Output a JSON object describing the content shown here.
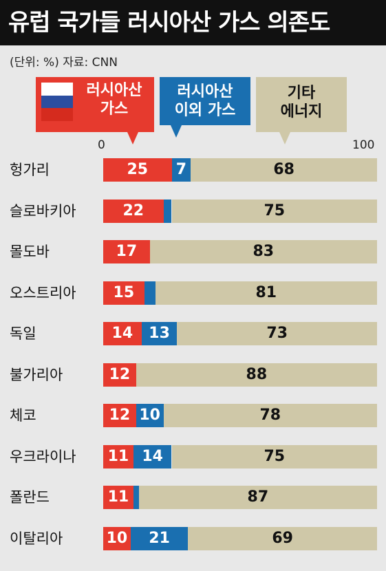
{
  "title": "유럽 국가들 러시아산 가스 의존도",
  "meta": "(단위: %)  자료: CNN",
  "legend": {
    "russia": [
      "러시아산",
      "가스"
    ],
    "other": [
      "러시아산",
      "이외 가스"
    ],
    "etc": [
      "기타",
      "에너지"
    ]
  },
  "colors": {
    "russia": "#e63a2e",
    "other": "#1a6fb0",
    "etc": "#cfc8a8",
    "background": "#e8e8e8"
  },
  "chart_data": {
    "type": "bar",
    "orientation": "horizontal",
    "stacked": true,
    "xlim": [
      0,
      100
    ],
    "x_ticks": [
      "0",
      "100"
    ],
    "categories": [
      "헝가리",
      "슬로바키아",
      "몰도바",
      "오스트리아",
      "독일",
      "불가리아",
      "체코",
      "우크라이나",
      "폴란드",
      "이탈리아"
    ],
    "series": [
      {
        "name": "러시아산 가스",
        "values": [
          25,
          22,
          17,
          15,
          14,
          12,
          12,
          11,
          11,
          10
        ]
      },
      {
        "name": "러시아산 이외 가스",
        "values": [
          7,
          3,
          0,
          4,
          13,
          0,
          10,
          14,
          2,
          21
        ]
      },
      {
        "name": "기타 에너지",
        "values": [
          68,
          75,
          83,
          81,
          73,
          88,
          78,
          75,
          87,
          69
        ]
      }
    ]
  }
}
